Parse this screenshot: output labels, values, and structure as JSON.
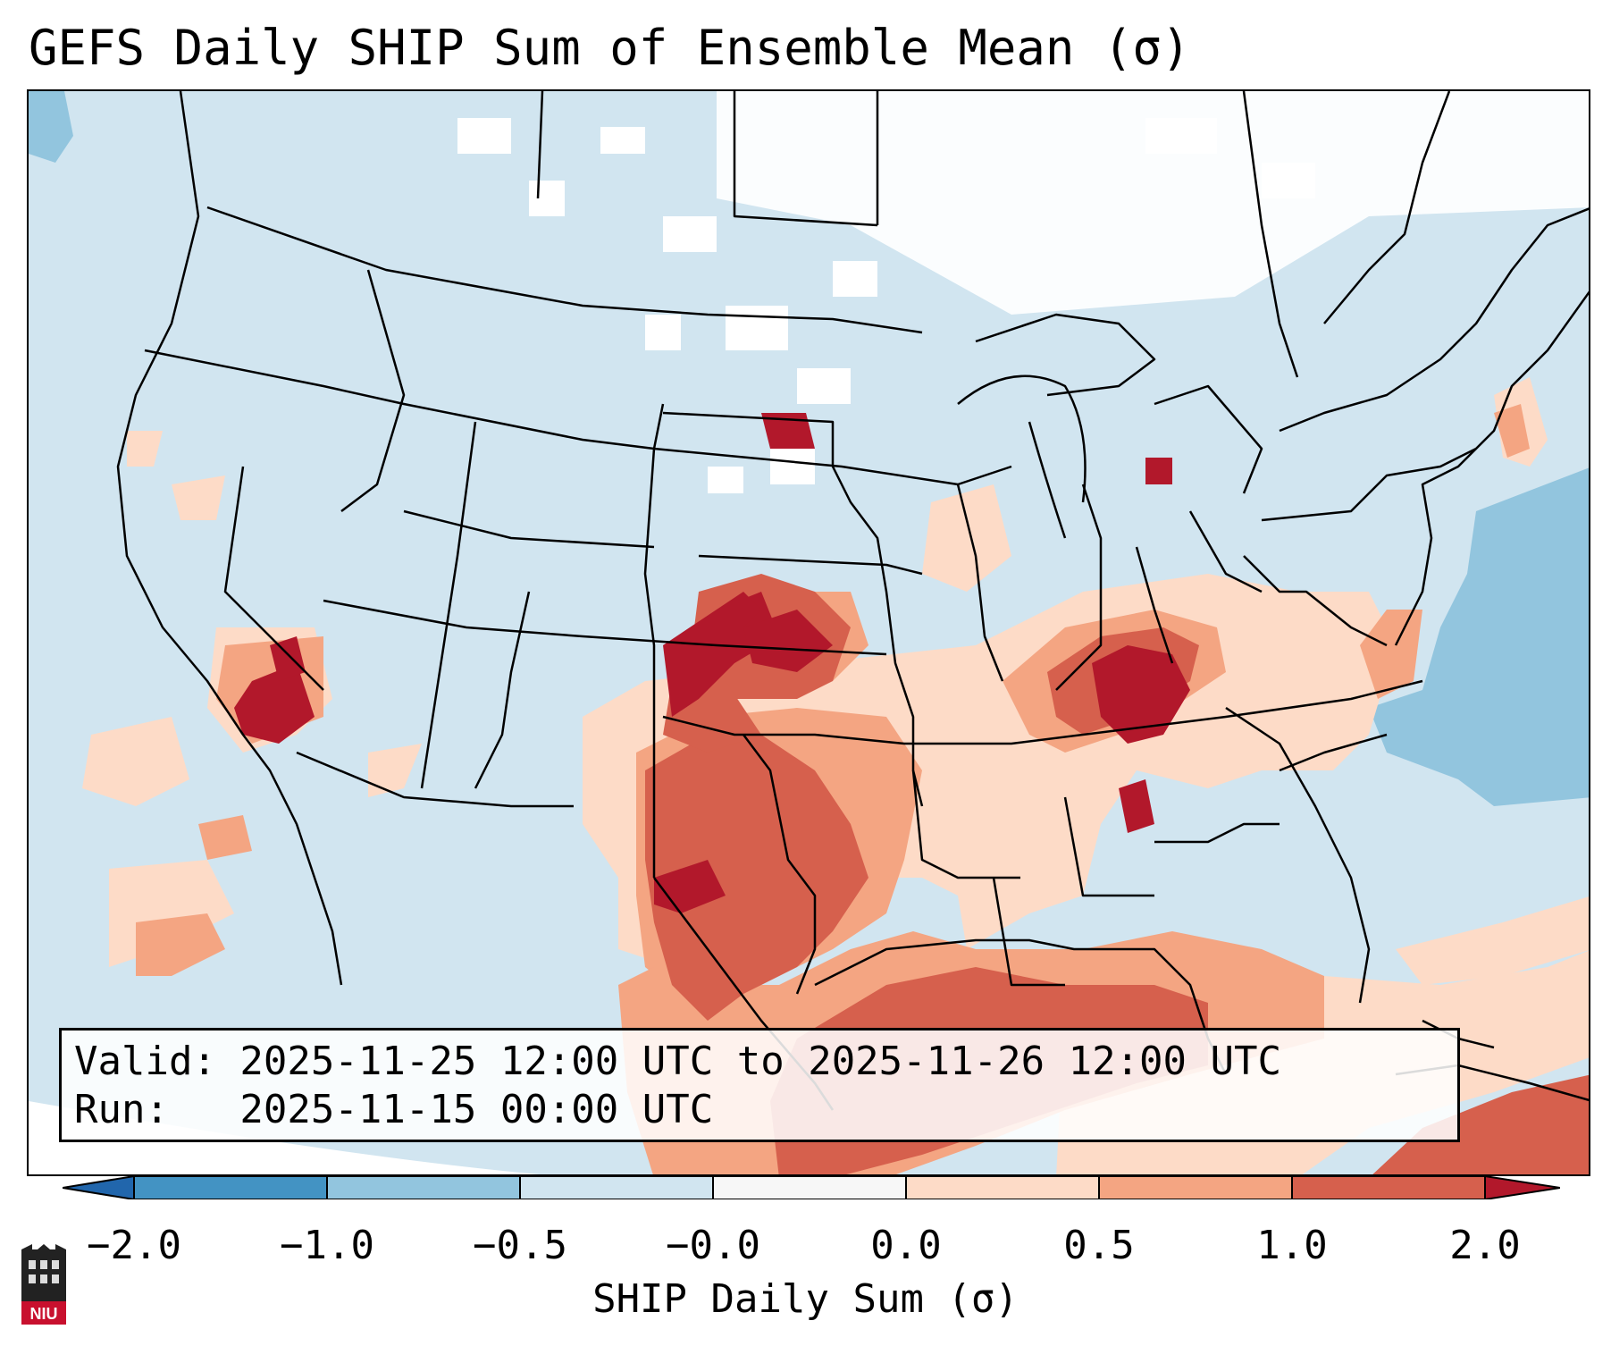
{
  "title": "GEFS Daily SHIP Sum of Ensemble Mean (σ)",
  "info": {
    "valid_line": "Valid: 2025-11-25 12:00 UTC to 2025-11-26 12:00 UTC",
    "run_line": "Run:   2025-11-15 00:00 UTC"
  },
  "colorbar": {
    "label": "SHIP Daily Sum (σ)",
    "ticks": [
      "−2.0",
      "−1.0",
      "−0.5",
      "−0.0",
      "0.0",
      "0.5",
      "1.0",
      "2.0"
    ],
    "colors": {
      "extend_low": "#2166ac",
      "bin_m2_m1": "#4393c3",
      "bin_m1_m05": "#92c5de",
      "bin_m05_0": "#d1e5f0",
      "bin_zero": "#f7f7f7",
      "bin_0_05": "#fddbc7",
      "bin_05_1": "#f4a582",
      "bin_1_2": "#d6604d",
      "extend_high": "#b2182b"
    }
  },
  "map": {
    "region": "Contiguous United States",
    "background_color": "#d1e5f0",
    "borders_color": "#000000"
  },
  "logo": {
    "text": "NIU",
    "color": "#c8102e"
  }
}
